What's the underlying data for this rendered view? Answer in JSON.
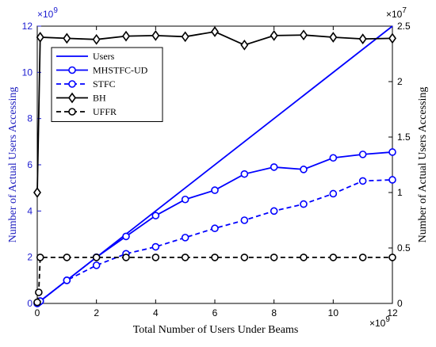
{
  "chart_data": {
    "type": "line",
    "xlabel": "Total Number of Users Under Beams",
    "ylabel_left": "Number of Actual Users Accessing",
    "ylabel_right": "Number of Actual Users Accessing",
    "x_exponent": "×10^9",
    "y_left_exponent": "×10^9",
    "y_right_exponent": "×10^7",
    "xlim": [
      0,
      12
    ],
    "ylim_left": [
      0,
      12
    ],
    "ylim_right": [
      0,
      2.5
    ],
    "x_ticks": [
      "0",
      "2",
      "4",
      "6",
      "8",
      "10",
      "12"
    ],
    "y_left_ticks": [
      "0",
      "2",
      "4",
      "6",
      "8",
      "10",
      "12"
    ],
    "y_right_ticks": [
      "0",
      "0.5",
      "1",
      "1.5",
      "2",
      "2.5"
    ],
    "legend_position": "top-left",
    "series": [
      {
        "name": "Users",
        "axis": "left",
        "color": "#0000ff",
        "dash": "solid",
        "marker": "none",
        "x": [
          0,
          12
        ],
        "y": [
          0,
          12
        ]
      },
      {
        "name": "MHSTFC-UD",
        "axis": "left",
        "color": "#0000ff",
        "dash": "solid",
        "marker": "circle",
        "x": [
          0,
          0.05,
          0.1,
          1,
          2,
          3,
          4,
          5,
          6,
          7,
          8,
          9,
          10,
          11,
          12
        ],
        "y": [
          0,
          0.05,
          0.1,
          1,
          2,
          2.9,
          3.8,
          4.5,
          4.9,
          5.6,
          5.9,
          5.8,
          6.3,
          6.45,
          6.55
        ]
      },
      {
        "name": "STFC",
        "axis": "left",
        "color": "#0000ff",
        "dash": "dashed",
        "marker": "circle",
        "x": [
          0,
          0.05,
          0.1,
          1,
          2,
          3,
          4,
          5,
          6,
          7,
          8,
          9,
          10,
          11,
          12
        ],
        "y": [
          0,
          0.05,
          0.1,
          1,
          1.65,
          2.15,
          2.45,
          2.85,
          3.25,
          3.6,
          4.0,
          4.3,
          4.75,
          5.3,
          5.35
        ]
      },
      {
        "name": "BH",
        "axis": "right",
        "color": "#000000",
        "dash": "solid",
        "marker": "diamond",
        "x": [
          0,
          0.1,
          1,
          2,
          3,
          4,
          5,
          6,
          7,
          8,
          9,
          10,
          11,
          12
        ],
        "y": [
          1.0,
          2.4,
          2.39,
          2.38,
          2.41,
          2.415,
          2.405,
          2.45,
          2.33,
          2.415,
          2.42,
          2.4,
          2.385,
          2.39
        ]
      },
      {
        "name": "UFFR",
        "axis": "right",
        "color": "#000000",
        "dash": "dashed",
        "marker": "circle",
        "x": [
          0,
          0.05,
          0.1,
          1,
          2,
          3,
          4,
          5,
          6,
          7,
          8,
          9,
          10,
          11,
          12
        ],
        "y": [
          0.01,
          0.1,
          0.415,
          0.415,
          0.415,
          0.415,
          0.415,
          0.415,
          0.415,
          0.415,
          0.415,
          0.415,
          0.415,
          0.415,
          0.415
        ]
      }
    ]
  }
}
